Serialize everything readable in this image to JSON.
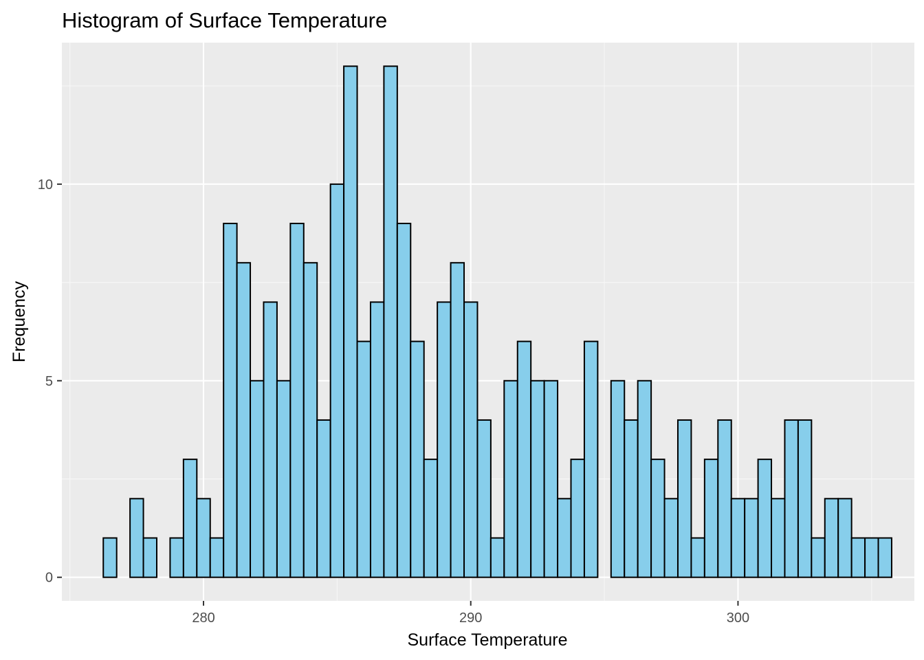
{
  "chart_data": {
    "type": "histogram",
    "title": "Histogram of Surface Temperature",
    "xlabel": "Surface Temperature",
    "ylabel": "Frequency",
    "xlim": [
      274.7,
      306.6
    ],
    "ylim": [
      -0.6,
      13.6
    ],
    "x_ticks": [
      280,
      290,
      300
    ],
    "y_ticks": [
      0,
      5,
      10
    ],
    "bin_start": 276.25,
    "bin_width": 0.5,
    "counts": [
      1,
      0,
      2,
      1,
      0,
      1,
      3,
      2,
      1,
      9,
      8,
      5,
      7,
      5,
      9,
      8,
      4,
      10,
      13,
      6,
      7,
      13,
      9,
      6,
      3,
      7,
      8,
      7,
      4,
      1,
      5,
      6,
      5,
      5,
      2,
      3,
      6,
      0,
      5,
      4,
      5,
      3,
      2,
      4,
      1,
      3,
      4,
      2,
      2,
      3,
      2,
      4,
      4,
      1,
      2,
      2,
      1,
      1,
      1
    ],
    "grid": true,
    "legend": "none",
    "colors": {
      "bar_fill": "#87ceeb",
      "bar_stroke": "#000000",
      "panel_background": "#ebebeb",
      "grid_major": "#ffffff",
      "grid_minor": "#f7f7f7"
    }
  }
}
